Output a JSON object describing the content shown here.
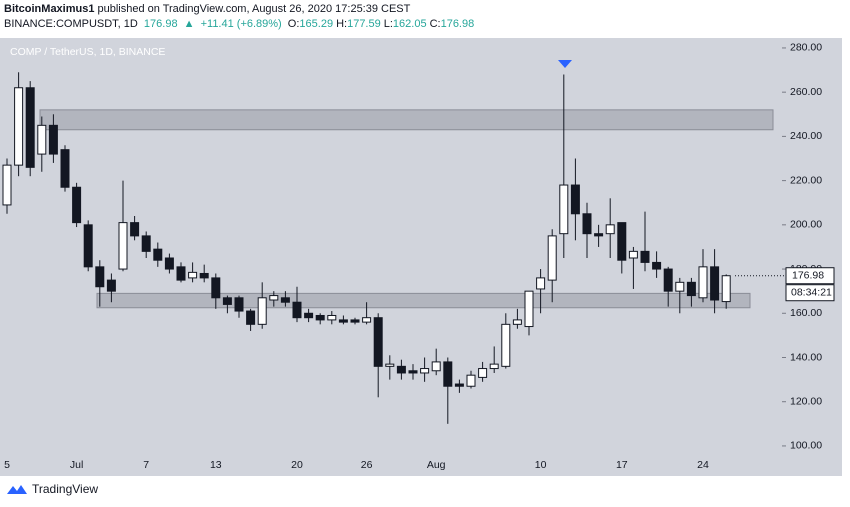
{
  "header": {
    "author": "BitcoinMaximus1",
    "published": "published on TradingView.com, August 26, 2020 17:25:39 CEST",
    "symbol": "BINANCE:COMPUSDT, 1D",
    "price": "176.98",
    "change": "+11.41 (+6.89%)",
    "ohlc": [
      {
        "label": "O:",
        "value": "165.29"
      },
      {
        "label": "H:",
        "value": "177.59"
      },
      {
        "label": "L:",
        "value": "162.05"
      },
      {
        "label": "C:",
        "value": "176.98"
      }
    ]
  },
  "chart_data": {
    "type": "candlestick",
    "title": "COMP / TetherUS, 1D, BINANCE",
    "categories": [
      "5",
      null,
      null,
      null,
      null,
      null,
      "Jul",
      null,
      null,
      null,
      null,
      null,
      "7",
      null,
      null,
      null,
      null,
      null,
      "13",
      null,
      null,
      null,
      null,
      null,
      null,
      "20",
      null,
      null,
      null,
      null,
      null,
      "26",
      null,
      null,
      null,
      null,
      null,
      "Aug",
      null,
      null,
      null,
      null,
      null,
      null,
      null,
      null,
      "10",
      null,
      null,
      null,
      null,
      null,
      null,
      "17",
      null,
      null,
      null,
      null,
      null,
      null,
      "24",
      null,
      null
    ],
    "series": [
      {
        "name": "open",
        "values": [
          209,
          227,
          262,
          232,
          245,
          234,
          217,
          200,
          181,
          175,
          180,
          201,
          195,
          189,
          185,
          181,
          176,
          178,
          176,
          167,
          167,
          161,
          155,
          166,
          167,
          165,
          160,
          159,
          157,
          157,
          157,
          156,
          158,
          136,
          136,
          134,
          133,
          134,
          138,
          128,
          127,
          131,
          135,
          136,
          155,
          154,
          171,
          175,
          196,
          218,
          205,
          196,
          196,
          201,
          185,
          188,
          183,
          180,
          170,
          174,
          167,
          181,
          165.29
        ]
      },
      {
        "name": "high",
        "values": [
          230,
          269,
          265,
          249,
          250,
          236,
          219,
          202,
          184,
          178,
          220,
          204,
          197,
          192,
          187,
          183,
          183,
          182,
          178,
          168,
          168,
          162,
          174,
          170,
          170,
          172,
          162,
          160,
          161,
          159,
          158,
          165,
          160,
          141,
          139,
          137,
          140,
          144,
          140,
          130,
          134,
          138,
          145,
          160,
          162,
          170,
          180,
          198,
          268,
          230,
          210,
          200,
          212,
          201,
          190,
          206,
          188,
          181,
          176,
          176,
          189,
          189,
          177.59
        ]
      },
      {
        "name": "low",
        "values": [
          205,
          222,
          222,
          224,
          228,
          215,
          199,
          179,
          163,
          165,
          179,
          193,
          185,
          181,
          178,
          174,
          174,
          174,
          162,
          160,
          158,
          152,
          153,
          163,
          163,
          156,
          156,
          155,
          155,
          155,
          155,
          155,
          122,
          130,
          130,
          130,
          129,
          132,
          110,
          124,
          126,
          129,
          133,
          135,
          153,
          150,
          160,
          165,
          185,
          193,
          185,
          190,
          185,
          178,
          171,
          179,
          176,
          163,
          160,
          163,
          165,
          160,
          162.05
        ]
      },
      {
        "name": "close",
        "values": [
          227,
          262,
          226,
          245,
          232,
          217,
          201,
          181,
          172,
          170,
          201,
          195,
          188,
          184,
          180,
          175,
          178.5,
          176,
          167,
          164,
          161,
          155,
          167,
          168,
          165,
          158,
          158,
          157,
          159,
          156,
          156,
          158,
          136,
          137,
          133,
          133,
          135,
          138,
          127,
          127,
          132,
          135,
          137,
          155,
          157,
          170,
          176,
          195,
          218,
          205,
          196,
          195,
          200,
          184,
          188,
          183,
          180,
          170,
          174,
          168,
          181,
          166,
          176.98
        ]
      }
    ],
    "up_color": "#ffffff",
    "down_color": "#131722",
    "zones": [
      {
        "low": 243,
        "high": 252
      },
      {
        "low": 162.5,
        "high": 169
      }
    ],
    "ylim": [
      95.9,
      284.5
    ],
    "yticks": [
      {
        "value": 100,
        "label": "100.00"
      },
      {
        "value": 120,
        "label": "120.00"
      },
      {
        "value": 140,
        "label": "140.00"
      },
      {
        "value": 160,
        "label": "160.00"
      },
      {
        "value": 180,
        "label": "180.00"
      },
      {
        "value": 200,
        "label": "200.00"
      },
      {
        "value": 220,
        "label": "220.00"
      },
      {
        "value": 240,
        "label": "240.00"
      },
      {
        "value": 260,
        "label": "260.00"
      },
      {
        "value": 280,
        "label": "280.00"
      }
    ],
    "last_price": 176.98,
    "countdown": "08:34:21"
  },
  "footer": {
    "brand": "TradingView"
  }
}
